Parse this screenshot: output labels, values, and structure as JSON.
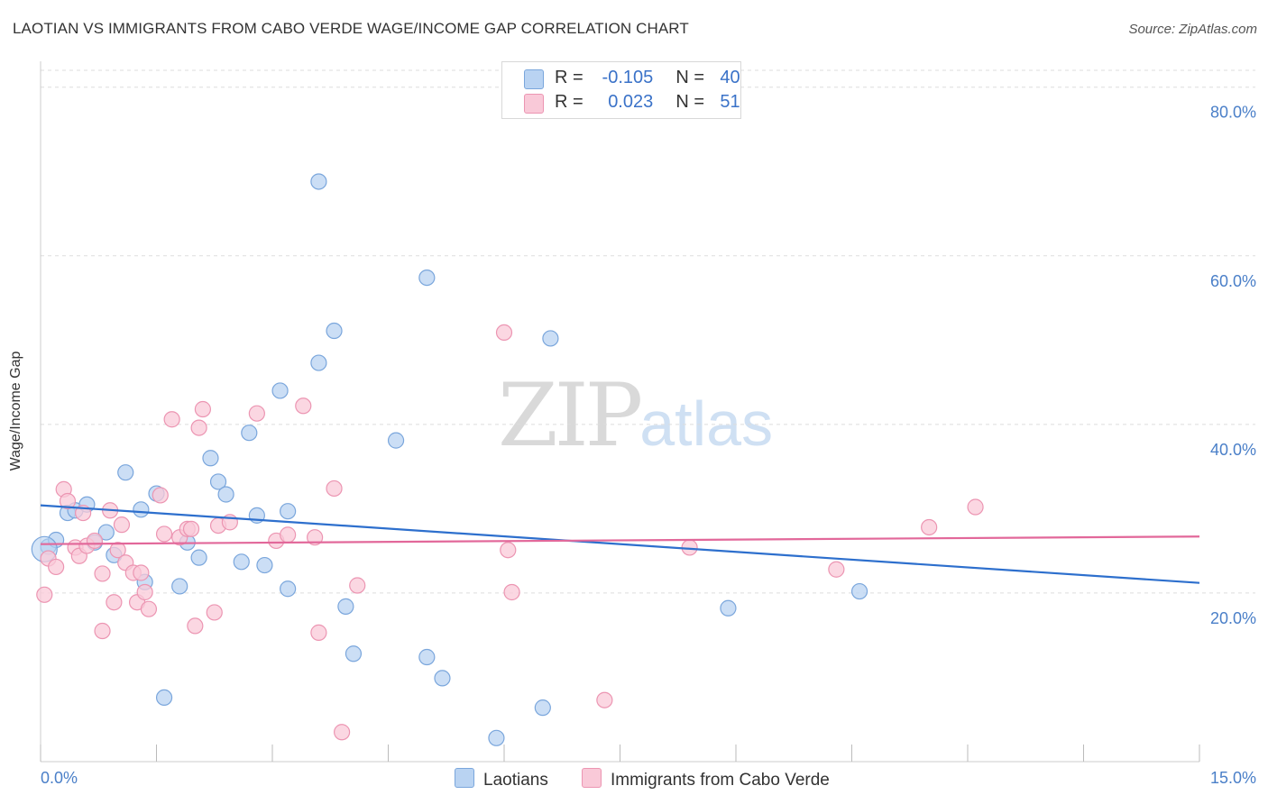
{
  "title": "LAOTIAN VS IMMIGRANTS FROM CABO VERDE WAGE/INCOME GAP CORRELATION CHART",
  "source": "Source: ZipAtlas.com",
  "watermark": {
    "zip": "ZIP",
    "atlas": "atlas"
  },
  "legend": {
    "row1": {
      "r_label": "R =",
      "r_value": "-0.105",
      "n_label": "N =",
      "n_value": "40"
    },
    "row2": {
      "r_label": "R =",
      "r_value": "0.023",
      "n_label": "N =",
      "n_value": "51"
    }
  },
  "colors": {
    "blue_fill": "#b9d3f2",
    "blue_stroke": "#7aa6dc",
    "blue_line": "#2d6fcd",
    "pink_fill": "#f9c9d8",
    "pink_stroke": "#ec95b2",
    "pink_line": "#e2689a",
    "grid": "#dddddd",
    "axis_text": "#4a7fc8"
  },
  "chart_data": {
    "type": "scatter",
    "title": "LAOTIAN VS IMMIGRANTS FROM CABO VERDE WAGE/INCOME GAP CORRELATION CHART",
    "xlabel": "",
    "ylabel": "Wage/Income Gap",
    "xlim": [
      0,
      15
    ],
    "ylim": [
      0,
      82
    ],
    "x_tick_labels": [
      "0.0%",
      "15.0%"
    ],
    "y_ticks": [
      20,
      40,
      60,
      80
    ],
    "y_tick_labels": [
      "20.0%",
      "40.0%",
      "60.0%",
      "80.0%"
    ],
    "grid": true,
    "legend_position": "top-center",
    "series": [
      {
        "name": "Laotians",
        "r": -0.105,
        "n": 40,
        "trend": [
          [
            0,
            30.4
          ],
          [
            15,
            21.2
          ]
        ],
        "points": [
          [
            0.1,
            25.5
          ],
          [
            0.2,
            26.3
          ],
          [
            0.35,
            29.5
          ],
          [
            0.45,
            29.8
          ],
          [
            0.6,
            30.5
          ],
          [
            0.7,
            26.0
          ],
          [
            0.85,
            27.2
          ],
          [
            1.1,
            34.3
          ],
          [
            1.3,
            29.9
          ],
          [
            1.5,
            31.8
          ],
          [
            1.35,
            21.3
          ],
          [
            1.8,
            20.8
          ],
          [
            1.9,
            26.0
          ],
          [
            2.05,
            24.2
          ],
          [
            2.2,
            36.0
          ],
          [
            2.3,
            33.2
          ],
          [
            2.4,
            31.7
          ],
          [
            2.6,
            23.7
          ],
          [
            2.7,
            39.0
          ],
          [
            2.8,
            29.2
          ],
          [
            2.9,
            23.3
          ],
          [
            3.1,
            44.0
          ],
          [
            3.2,
            29.7
          ],
          [
            3.2,
            20.5
          ],
          [
            3.6,
            68.8
          ],
          [
            3.6,
            47.3
          ],
          [
            3.8,
            51.1
          ],
          [
            3.95,
            18.4
          ],
          [
            4.05,
            12.8
          ],
          [
            4.6,
            38.1
          ],
          [
            5.0,
            57.4
          ],
          [
            5.0,
            12.4
          ],
          [
            5.2,
            9.9
          ],
          [
            5.9,
            2.8
          ],
          [
            6.5,
            6.4
          ],
          [
            6.6,
            50.2
          ],
          [
            1.6,
            7.6
          ],
          [
            8.9,
            18.2
          ],
          [
            10.6,
            20.2
          ],
          [
            0.95,
            24.5
          ]
        ]
      },
      {
        "name": "Immigrants from Cabo Verde",
        "r": 0.023,
        "n": 51,
        "trend": [
          [
            0,
            25.8
          ],
          [
            15,
            26.7
          ]
        ],
        "points": [
          [
            0.05,
            19.8
          ],
          [
            0.1,
            24.1
          ],
          [
            0.2,
            23.1
          ],
          [
            0.3,
            32.3
          ],
          [
            0.35,
            30.9
          ],
          [
            0.45,
            25.4
          ],
          [
            0.5,
            24.4
          ],
          [
            0.55,
            29.5
          ],
          [
            0.6,
            25.6
          ],
          [
            0.7,
            26.2
          ],
          [
            0.8,
            22.3
          ],
          [
            0.8,
            15.5
          ],
          [
            0.9,
            29.8
          ],
          [
            0.95,
            18.9
          ],
          [
            1.0,
            25.1
          ],
          [
            1.05,
            28.1
          ],
          [
            1.1,
            23.6
          ],
          [
            1.2,
            22.4
          ],
          [
            1.25,
            18.9
          ],
          [
            1.3,
            22.4
          ],
          [
            1.35,
            20.1
          ],
          [
            1.4,
            18.1
          ],
          [
            1.55,
            31.6
          ],
          [
            1.6,
            27.0
          ],
          [
            1.7,
            40.6
          ],
          [
            1.8,
            26.6
          ],
          [
            1.9,
            27.6
          ],
          [
            1.95,
            27.6
          ],
          [
            2.0,
            16.1
          ],
          [
            2.05,
            39.6
          ],
          [
            2.1,
            41.8
          ],
          [
            2.25,
            17.7
          ],
          [
            2.3,
            28.0
          ],
          [
            2.45,
            28.4
          ],
          [
            2.8,
            41.3
          ],
          [
            3.05,
            26.2
          ],
          [
            3.2,
            26.9
          ],
          [
            3.4,
            42.2
          ],
          [
            3.55,
            26.6
          ],
          [
            3.6,
            15.3
          ],
          [
            3.8,
            32.4
          ],
          [
            3.9,
            3.5
          ],
          [
            4.1,
            20.9
          ],
          [
            6.0,
            50.9
          ],
          [
            6.05,
            25.1
          ],
          [
            6.1,
            20.1
          ],
          [
            7.3,
            7.3
          ],
          [
            8.4,
            25.4
          ],
          [
            10.3,
            22.8
          ],
          [
            11.5,
            27.8
          ],
          [
            12.1,
            30.2
          ]
        ]
      }
    ]
  }
}
